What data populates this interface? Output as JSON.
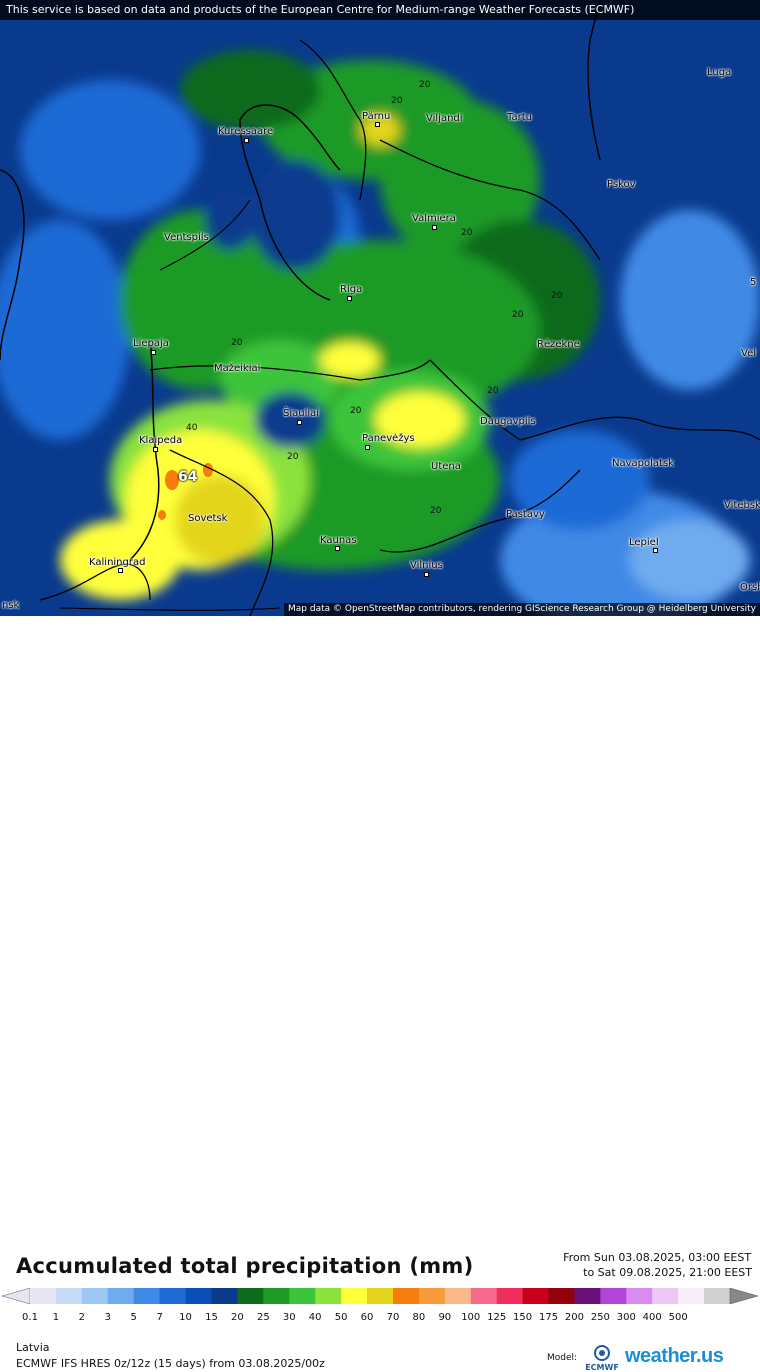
{
  "banner": "This service is based on data and products of the European Centre for Medium-range Weather Forecasts (ECMWF)",
  "attribution": "Map data © OpenStreetMap contributors, rendering GIScience Research Group @ Heidelberg University",
  "cities": [
    {
      "name": "Luga"
    },
    {
      "name": "Kuressaare"
    },
    {
      "name": "Pärnu"
    },
    {
      "name": "Viljandi"
    },
    {
      "name": "Tartu"
    },
    {
      "name": "Pskov"
    },
    {
      "name": "Valmiera"
    },
    {
      "name": "Ventspils"
    },
    {
      "name": "Riga"
    },
    {
      "name": "Rēzekne"
    },
    {
      "name": "Liepaja"
    },
    {
      "name": "Mažeikiai"
    },
    {
      "name": "Šiauliai"
    },
    {
      "name": "Panevėžys"
    },
    {
      "name": "Daugavpils"
    },
    {
      "name": "Klaipeda"
    },
    {
      "name": "Utena"
    },
    {
      "name": "Navapolatsk"
    },
    {
      "name": "Sovetsk"
    },
    {
      "name": "Vitebsk"
    },
    {
      "name": "Pastavy"
    },
    {
      "name": "Kaunas"
    },
    {
      "name": "Lepiel"
    },
    {
      "name": "Kaliningrad"
    },
    {
      "name": "Vilnius"
    },
    {
      "name": "Orsha"
    }
  ],
  "edge_labels": [
    "nsk",
    "Vel",
    "5"
  ],
  "contour_labels": [
    "20",
    "20",
    "20",
    "20",
    "20",
    "20",
    "20",
    "40",
    "20",
    "20",
    "20"
  ],
  "max_value_label": "64",
  "legend": {
    "title": "Accumulated total precipitation (mm)",
    "period_from": "From Sun 03.08.2025, 03:00 EEST",
    "period_to": "to Sat 09.08.2025, 21:00 EEST",
    "ticks": [
      "0.1",
      "1",
      "2",
      "3",
      "5",
      "7",
      "10",
      "15",
      "20",
      "25",
      "30",
      "40",
      "50",
      "60",
      "70",
      "80",
      "90",
      "100",
      "125",
      "150",
      "175",
      "200",
      "250",
      "300",
      "400",
      "500"
    ],
    "colors": [
      "#e8e4f4",
      "#c6dcf6",
      "#9cc8f4",
      "#6fabef",
      "#3f8ae6",
      "#1e6bd6",
      "#0c4eb8",
      "#0a3a8e",
      "#0d6b1a",
      "#1f9a26",
      "#3cc43a",
      "#8be23c",
      "#ffff3a",
      "#e3d51a",
      "#f57d0c",
      "#fa9b3a",
      "#fbb98b",
      "#f76a8c",
      "#ef2e5a",
      "#c9001c",
      "#92000e",
      "#6a0f78",
      "#b245d8",
      "#d98cf0",
      "#efc7f7",
      "#f8eefb",
      "#d0d0d0"
    ],
    "region": "Latvia",
    "model_line": "ECMWF IFS HRES 0z/12z (15 days) from  03.08.2025/00z",
    "model_label": "Model:",
    "ecmwf_logo": "ECMWF",
    "brand": "weather.us"
  }
}
